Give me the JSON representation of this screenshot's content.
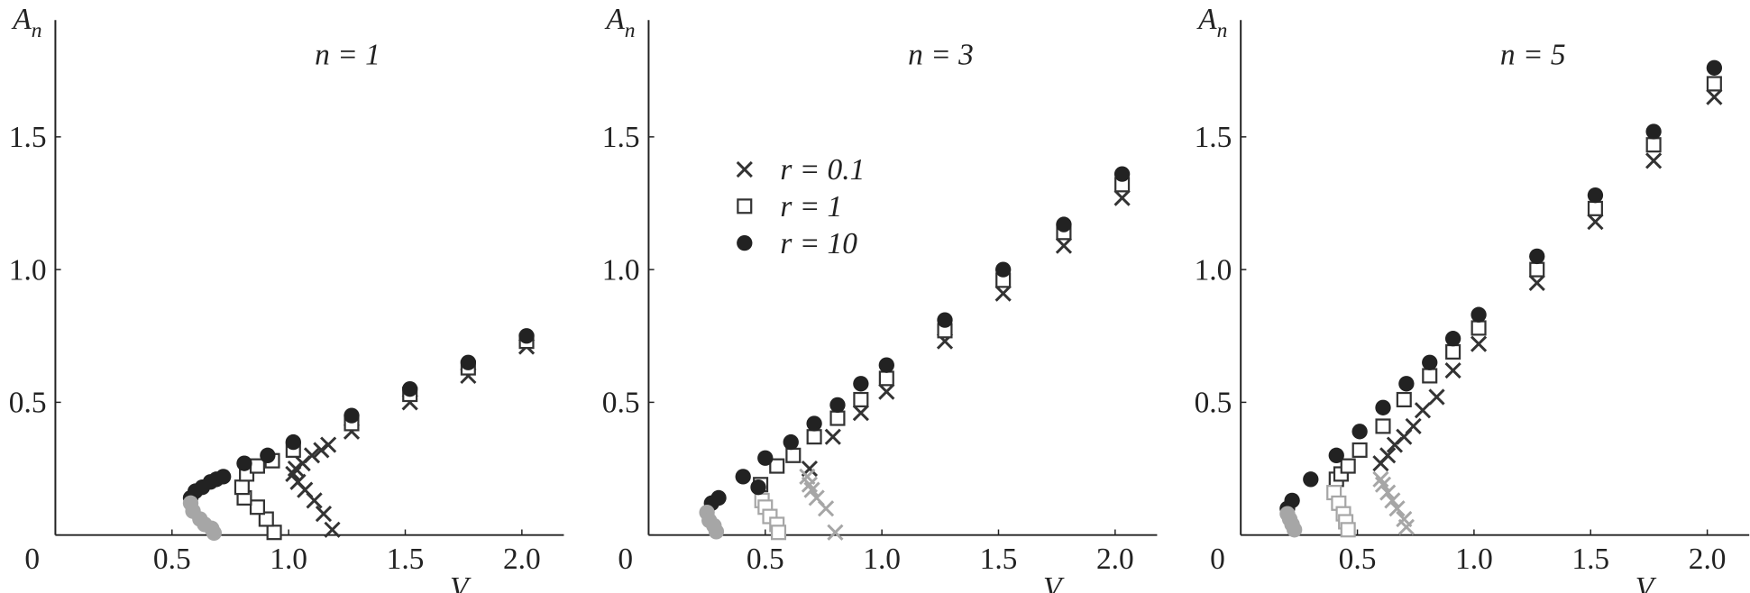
{
  "chart_data": [
    {
      "type": "scatter",
      "title": "n = 1",
      "x_label": "V",
      "y_label": "A",
      "y_label_sub": "n",
      "xlim": [
        0,
        2.18
      ],
      "ylim": [
        0,
        1.94
      ],
      "xticks": [
        0.5,
        {
          "value": 1,
          "label": "1.0"
        },
        1.5,
        {
          "value": 2,
          "label": "2.0"
        }
      ],
      "yticks": [
        0,
        0.5,
        {
          "value": 1,
          "label": "1.0"
        },
        1.5
      ],
      "series": [
        {
          "marker": "x",
          "color": "#333333",
          "x": [
            1.187,
            1.15,
            1.11,
            1.07,
            1.04,
            1.02,
            1.03,
            1.06,
            1.1,
            1.14,
            1.17,
            1.27,
            1.52,
            1.77,
            2.02
          ],
          "values": [
            0.02,
            0.08,
            0.13,
            0.17,
            0.2,
            0.23,
            0.25,
            0.27,
            0.3,
            0.32,
            0.34,
            0.39,
            0.5,
            0.6,
            0.71
          ]
        },
        {
          "marker": "square",
          "color": "#333333",
          "x": [
            0.938,
            0.904,
            0.866,
            0.81,
            0.8,
            0.82,
            0.866,
            0.93,
            1.02,
            1.27,
            1.52,
            1.77,
            2.02
          ],
          "values": [
            0.01,
            0.06,
            0.105,
            0.14,
            0.18,
            0.23,
            0.26,
            0.28,
            0.32,
            0.42,
            0.53,
            0.63,
            0.73
          ]
        },
        {
          "marker": "circle",
          "color": "#222222",
          "x": [
            0.58,
            0.6,
            0.63,
            0.665,
            0.69,
            0.72,
            0.81,
            0.91,
            1.02,
            1.27,
            1.52,
            1.77,
            2.02
          ],
          "values": [
            0.14,
            0.165,
            0.18,
            0.2,
            0.21,
            0.22,
            0.27,
            0.3,
            0.35,
            0.45,
            0.55,
            0.65,
            0.75
          ]
        },
        {
          "marker": "circle",
          "color": "#a6a6a6",
          "x": [
            0.58,
            0.59,
            0.62,
            0.64,
            0.67,
            0.68
          ],
          "values": [
            0.12,
            0.09,
            0.06,
            0.04,
            0.025,
            0.008
          ]
        }
      ]
    },
    {
      "type": "scatter",
      "title": "n = 3",
      "x_label": "V",
      "y_label": "A",
      "y_label_sub": "n",
      "xlim": [
        0,
        2.18
      ],
      "ylim": [
        0,
        1.94
      ],
      "legend": "upper left",
      "xticks": [
        0.5,
        {
          "value": 1,
          "label": "1.0"
        },
        1.5,
        {
          "value": 2,
          "label": "2.0"
        }
      ],
      "yticks": [
        0,
        0.5,
        {
          "value": 1,
          "label": "1.0"
        },
        1.5
      ],
      "series": [
        {
          "name": "r = 0.1",
          "marker": "x",
          "color": "#333333",
          "x": [
            0.69,
            0.79,
            0.91,
            1.02,
            1.27,
            1.52,
            1.78,
            2.03
          ],
          "values": [
            0.25,
            0.37,
            0.46,
            0.54,
            0.73,
            0.91,
            1.09,
            1.27
          ]
        },
        {
          "marker": "x",
          "color": "#a6a6a6",
          "x": [
            0.68,
            0.69,
            0.7,
            0.72,
            0.76,
            0.8
          ],
          "values": [
            0.22,
            0.19,
            0.17,
            0.14,
            0.1,
            0.01
          ]
        },
        {
          "name": "r = 1",
          "marker": "square",
          "color": "#333333",
          "x": [
            0.48,
            0.55,
            0.62,
            0.71,
            0.81,
            0.91,
            1.02,
            1.27,
            1.52,
            1.78,
            2.03
          ],
          "values": [
            0.19,
            0.26,
            0.3,
            0.37,
            0.44,
            0.51,
            0.59,
            0.77,
            0.96,
            1.14,
            1.32
          ]
        },
        {
          "marker": "square",
          "color": "#a6a6a6",
          "x": [
            0.486,
            0.5,
            0.52,
            0.55,
            0.557
          ],
          "values": [
            0.13,
            0.105,
            0.07,
            0.04,
            0.01
          ]
        },
        {
          "name": "r = 10",
          "marker": "circle",
          "color": "#222222",
          "x": [
            0.27,
            0.3,
            0.405,
            0.47,
            0.5,
            0.61,
            0.71,
            0.81,
            0.91,
            1.02,
            1.27,
            1.52,
            1.78,
            2.03
          ],
          "values": [
            0.12,
            0.14,
            0.22,
            0.18,
            0.29,
            0.35,
            0.42,
            0.49,
            0.57,
            0.64,
            0.81,
            1.0,
            1.17,
            1.36
          ]
        },
        {
          "marker": "circle",
          "color": "#a6a6a6",
          "x": [
            0.25,
            0.26,
            0.28,
            0.29
          ],
          "values": [
            0.085,
            0.055,
            0.035,
            0.013
          ]
        }
      ]
    },
    {
      "type": "scatter",
      "title": "n = 5",
      "x_label": "V",
      "y_label": "A",
      "y_label_sub": "n",
      "xlim": [
        0,
        2.18
      ],
      "ylim": [
        0,
        1.94
      ],
      "xticks": [
        0.5,
        {
          "value": 1,
          "label": "1.0"
        },
        1.5,
        {
          "value": 2,
          "label": "2.0"
        }
      ],
      "yticks": [
        0,
        0.5,
        {
          "value": 1,
          "label": "1.0"
        },
        1.5
      ],
      "series": [
        {
          "marker": "x",
          "color": "#333333",
          "x": [
            0.6,
            0.63,
            0.66,
            0.7,
            0.74,
            0.78,
            0.84,
            0.91,
            1.02,
            1.27,
            1.52,
            1.77,
            2.03
          ],
          "values": [
            0.27,
            0.3,
            0.34,
            0.37,
            0.41,
            0.47,
            0.52,
            0.62,
            0.72,
            0.95,
            1.18,
            1.41,
            1.65
          ]
        },
        {
          "marker": "x",
          "color": "#a6a6a6",
          "x": [
            0.6,
            0.61,
            0.63,
            0.65,
            0.67,
            0.7,
            0.71
          ],
          "values": [
            0.21,
            0.19,
            0.16,
            0.13,
            0.1,
            0.06,
            0.03
          ]
        },
        {
          "marker": "square",
          "color": "#333333",
          "x": [
            0.41,
            0.43,
            0.46,
            0.51,
            0.61,
            0.7,
            0.81,
            0.91,
            1.02,
            1.27,
            1.52,
            1.77,
            2.03
          ],
          "values": [
            0.21,
            0.23,
            0.26,
            0.32,
            0.41,
            0.51,
            0.6,
            0.69,
            0.78,
            1.0,
            1.23,
            1.47,
            1.7
          ]
        },
        {
          "marker": "square",
          "color": "#a6a6a6",
          "x": [
            0.4,
            0.42,
            0.44,
            0.45,
            0.46
          ],
          "values": [
            0.16,
            0.12,
            0.08,
            0.05,
            0.02
          ]
        },
        {
          "marker": "circle",
          "color": "#222222",
          "x": [
            0.2,
            0.22,
            0.3,
            0.41,
            0.51,
            0.61,
            0.71,
            0.81,
            0.91,
            1.02,
            1.27,
            1.52,
            1.77,
            2.03
          ],
          "values": [
            0.1,
            0.13,
            0.21,
            0.3,
            0.39,
            0.48,
            0.57,
            0.65,
            0.74,
            0.83,
            1.05,
            1.28,
            1.52,
            1.76
          ]
        },
        {
          "marker": "circle",
          "color": "#a6a6a6",
          "x": [
            0.2,
            0.21,
            0.22,
            0.23
          ],
          "values": [
            0.08,
            0.06,
            0.04,
            0.02
          ]
        }
      ]
    }
  ]
}
